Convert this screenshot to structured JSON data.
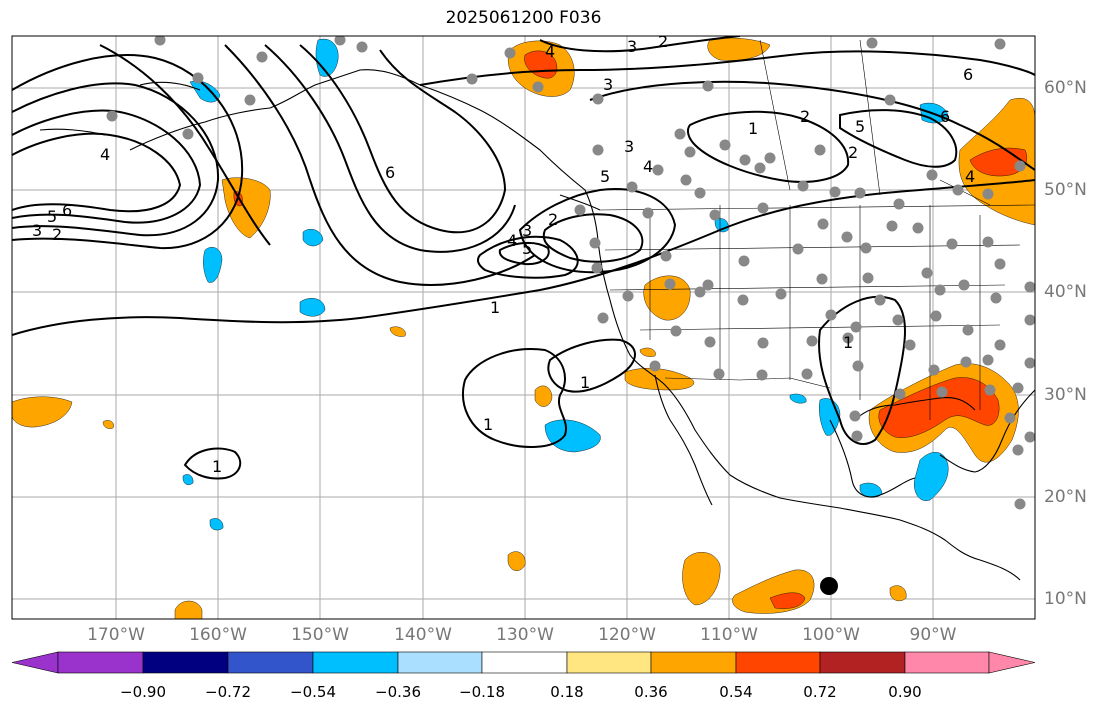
{
  "title": "2025061200 F036",
  "lon_labels": [
    "170°W",
    "160°W",
    "150°W",
    "140°W",
    "130°W",
    "120°W",
    "110°W",
    "100°W",
    "90°W"
  ],
  "lat_labels": [
    "60°N",
    "50°N",
    "40°N",
    "30°N",
    "20°N",
    "10°N"
  ],
  "colorbar": {
    "ticks": [
      "−0.90",
      "−0.72",
      "−0.54",
      "−0.36",
      "−0.18",
      "0.18",
      "0.36",
      "0.54",
      "0.72",
      "0.90"
    ],
    "colors": [
      "#9933cc",
      "#000080",
      "#3355cc",
      "#00bfff",
      "#aadfff",
      "#ffffff",
      "#ffe680",
      "#ffa500",
      "#ff4500",
      "#b22222",
      "#ff88aa"
    ]
  },
  "contour_labels": [
    "1",
    "2",
    "3",
    "4",
    "5",
    "6"
  ],
  "station_marker_color": "#888888",
  "highlight_marker_color": "#000000"
}
